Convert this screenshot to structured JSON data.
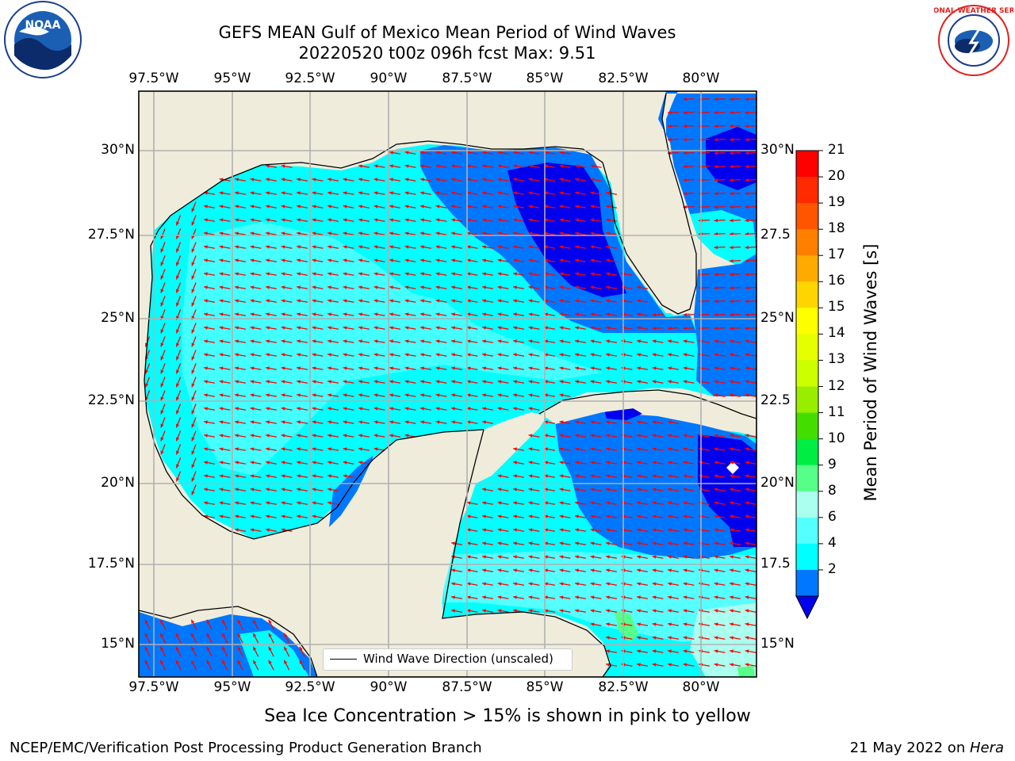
{
  "title": {
    "line1": "GEFS MEAN Gulf of Mexico Mean Period of Wind Waves",
    "line2": "20220520 t00z 096h fcst   Max: 9.51"
  },
  "logos": {
    "left": "noaa-logo",
    "right": "national-weather-service-logo",
    "right_text": "NATIONAL WEATHER SERVICE"
  },
  "map": {
    "lon_labels": [
      "97.5°W",
      "95°W",
      "92.5°W",
      "90°W",
      "87.5°W",
      "85°W",
      "82.5°W",
      "80°W"
    ],
    "lat_labels": [
      "30°N",
      "27.5°N",
      "25°N",
      "22.5°N",
      "20°N",
      "17.5°N",
      "15°N"
    ],
    "lat_labels_right": [
      "30°N",
      "27.5",
      "25°N",
      "22.5",
      "20°N",
      "17.5",
      "15°N"
    ],
    "legend_label": "Wind Wave Direction (unscaled)",
    "land_color": "#efecdc",
    "arrow_color": "#ff0000"
  },
  "colorbar": {
    "label": "Mean Period of Wind Waves [s]",
    "ticks": [
      "21",
      "20",
      "19",
      "18",
      "17",
      "16",
      "15",
      "14",
      "13",
      "12",
      "11",
      "10",
      "9",
      "8",
      "6",
      "4",
      "2"
    ],
    "colors": [
      "#ff0000",
      "#ff2a00",
      "#ff5500",
      "#ff8000",
      "#ffaa00",
      "#ffd500",
      "#ffff00",
      "#e6ff00",
      "#ccff00",
      "#99ee00",
      "#44dd00",
      "#00ee44",
      "#55ff88",
      "#aaffee",
      "#55ffff",
      "#00ffff",
      "#0077ff",
      "#0000ee"
    ]
  },
  "caption": "Sea Ice Concentration > 15% is shown in pink to yellow",
  "footer": {
    "left": "NCEP/EMC/Verification Post Processing Product Generation Branch",
    "right_prefix": "21 May 2022 on ",
    "right_italic": "Hera"
  }
}
